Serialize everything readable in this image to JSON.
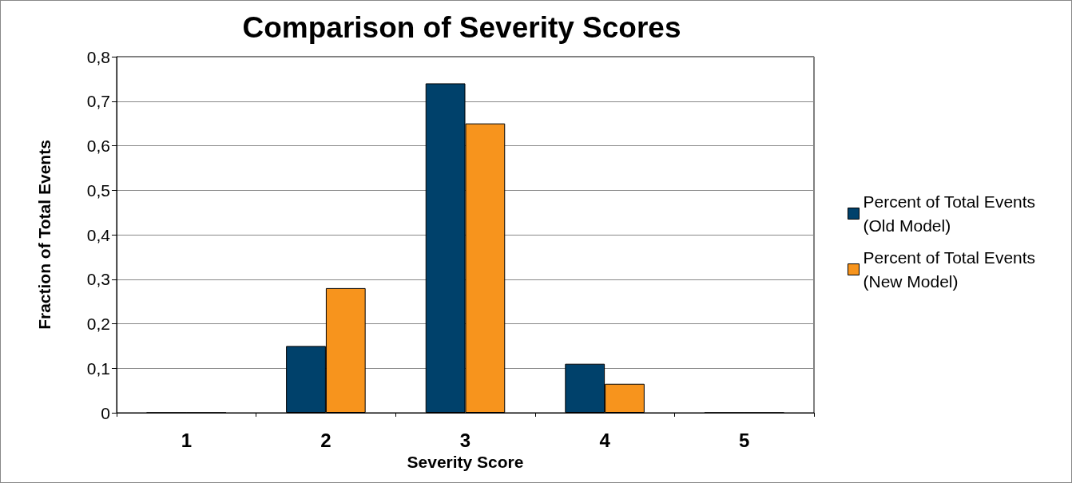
{
  "chart_data": {
    "type": "bar",
    "title": "Comparison of Severity Scores",
    "xlabel": "Severity Score",
    "ylabel": "Fraction of Total Events",
    "categories": [
      "1",
      "2",
      "3",
      "4",
      "5"
    ],
    "series": [
      {
        "name": "Percent of Total Events (Old Model)",
        "color": "#00416b",
        "values": [
          0,
          0.15,
          0.74,
          0.11,
          0
        ]
      },
      {
        "name": "Percent of Total Events (New Model)",
        "color": "#f7941d",
        "values": [
          0,
          0.28,
          0.65,
          0.065,
          0
        ]
      }
    ],
    "ylim": [
      0,
      0.8
    ],
    "yticks": [
      {
        "value": 0,
        "label": "0"
      },
      {
        "value": 0.1,
        "label": "0,1"
      },
      {
        "value": 0.2,
        "label": "0,2"
      },
      {
        "value": 0.3,
        "label": "0,3"
      },
      {
        "value": 0.4,
        "label": "0,4"
      },
      {
        "value": 0.5,
        "label": "0,5"
      },
      {
        "value": 0.6,
        "label": "0,6"
      },
      {
        "value": 0.7,
        "label": "0,7"
      },
      {
        "value": 0.8,
        "label": "0,8"
      }
    ],
    "grid": "y",
    "legend": "right"
  }
}
